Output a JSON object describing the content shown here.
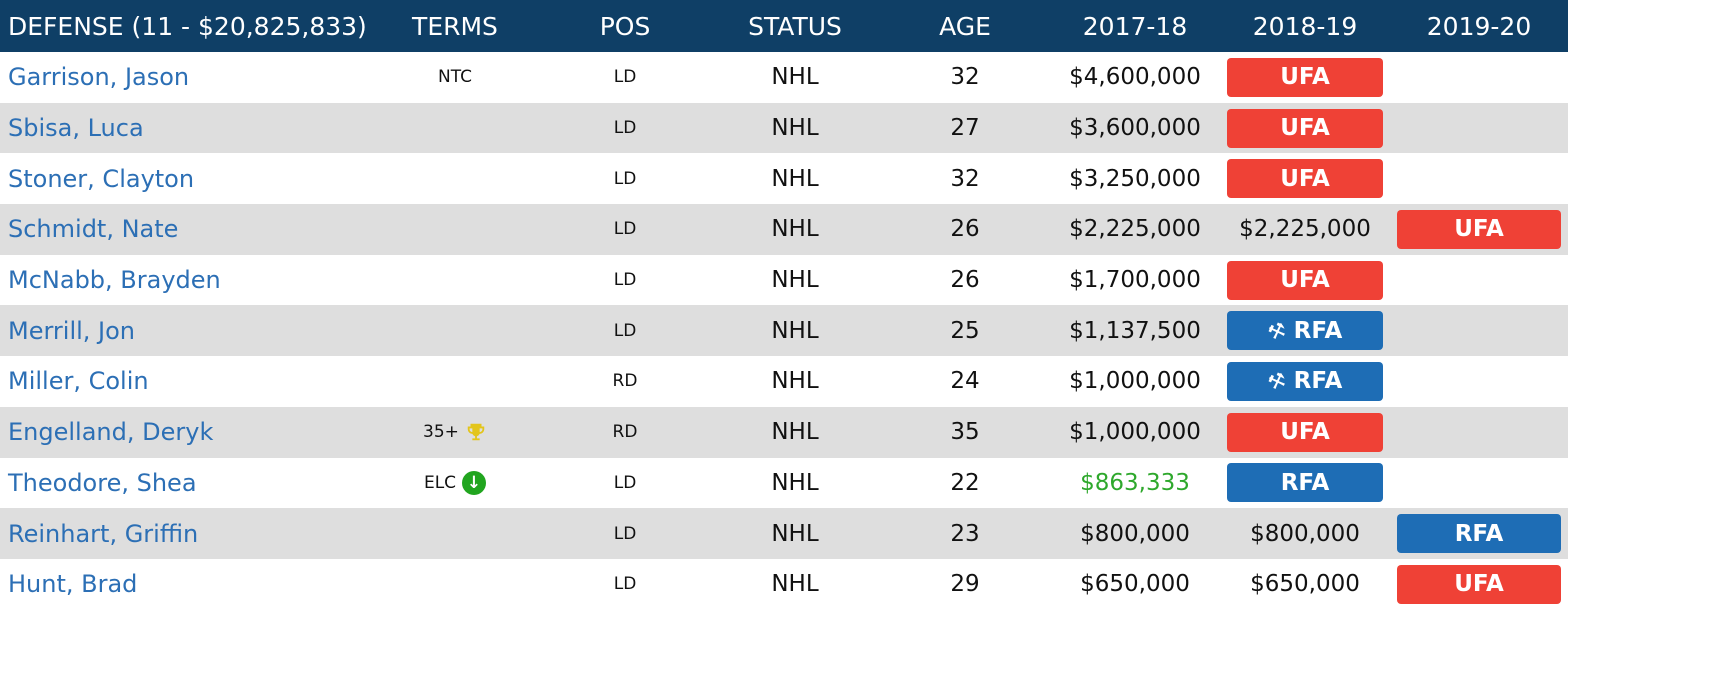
{
  "header": {
    "name": "DEFENSE (11 - $20,825,833)",
    "terms": "TERMS",
    "pos": "POS",
    "status": "STATUS",
    "age": "AGE",
    "y1": "2017-18",
    "y2": "2018-19",
    "y3": "2019-20"
  },
  "colors": {
    "header_bg": "#0f3f66",
    "ufa": "#ef4136",
    "rfa": "#1e6db5",
    "link": "#2c6fb5",
    "elc_green": "#2ea82c"
  },
  "rows": [
    {
      "name": "Garrison, Jason",
      "terms": "NTC",
      "pos": "LD",
      "status": "NHL",
      "age": "32",
      "y1": "$4,600,000",
      "y2": "",
      "y2_badge": "UFA",
      "y3": "",
      "y3_badge": ""
    },
    {
      "name": "Sbisa, Luca",
      "terms": "",
      "pos": "LD",
      "status": "NHL",
      "age": "27",
      "y1": "$3,600,000",
      "y2": "",
      "y2_badge": "UFA",
      "y3": "",
      "y3_badge": ""
    },
    {
      "name": "Stoner, Clayton",
      "terms": "",
      "pos": "LD",
      "status": "NHL",
      "age": "32",
      "y1": "$3,250,000",
      "y2": "",
      "y2_badge": "UFA",
      "y3": "",
      "y3_badge": ""
    },
    {
      "name": "Schmidt, Nate",
      "terms": "",
      "pos": "LD",
      "status": "NHL",
      "age": "26",
      "y1": "$2,225,000",
      "y2": "$2,225,000",
      "y2_badge": "",
      "y3": "",
      "y3_badge": "UFA"
    },
    {
      "name": "McNabb, Brayden",
      "terms": "",
      "pos": "LD",
      "status": "NHL",
      "age": "26",
      "y1": "$1,700,000",
      "y2": "",
      "y2_badge": "UFA",
      "y3": "",
      "y3_badge": ""
    },
    {
      "name": "Merrill, Jon",
      "terms": "",
      "pos": "LD",
      "status": "NHL",
      "age": "25",
      "y1": "$1,137,500",
      "y2": "",
      "y2_badge": "RFA",
      "y2_arb": true,
      "y3": "",
      "y3_badge": ""
    },
    {
      "name": "Miller, Colin",
      "terms": "",
      "pos": "RD",
      "status": "NHL",
      "age": "24",
      "y1": "$1,000,000",
      "y2": "",
      "y2_badge": "RFA",
      "y2_arb": true,
      "y3": "",
      "y3_badge": ""
    },
    {
      "name": "Engelland, Deryk",
      "terms": "35+",
      "terms_icon": "trophy-icon",
      "pos": "RD",
      "status": "NHL",
      "age": "35",
      "y1": "$1,000,000",
      "y2": "",
      "y2_badge": "UFA",
      "y3": "",
      "y3_badge": ""
    },
    {
      "name": "Theodore, Shea",
      "terms": "ELC",
      "terms_icon": "elc-down-arrow-icon",
      "pos": "LD",
      "status": "NHL",
      "age": "22",
      "y1": "$863,333",
      "y1_green": true,
      "y2": "",
      "y2_badge": "RFA",
      "y3": "",
      "y3_badge": ""
    },
    {
      "name": "Reinhart, Griffin",
      "terms": "",
      "pos": "LD",
      "status": "NHL",
      "age": "23",
      "y1": "$800,000",
      "y2": "$800,000",
      "y2_badge": "",
      "y3": "",
      "y3_badge": "RFA"
    },
    {
      "name": "Hunt, Brad",
      "terms": "",
      "pos": "LD",
      "status": "NHL",
      "age": "29",
      "y1": "$650,000",
      "y2": "$650,000",
      "y2_badge": "",
      "y3": "",
      "y3_badge": "UFA"
    }
  ]
}
